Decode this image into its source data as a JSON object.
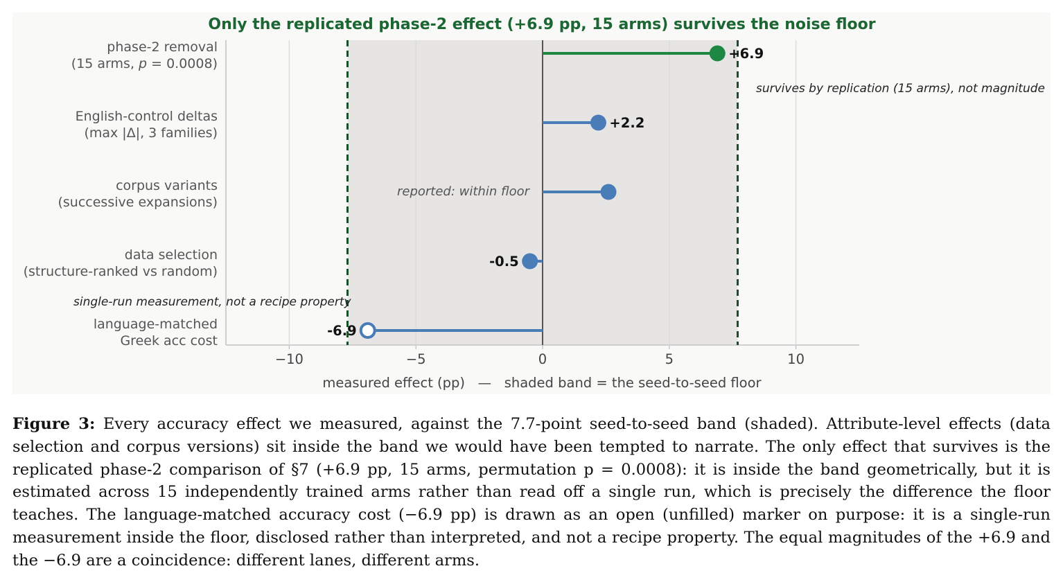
{
  "chart_data": {
    "type": "lollipop",
    "title": "Only the replicated phase-2 effect (+6.9 pp, 15 arms) survives the noise floor",
    "xlabel": "measured effect (pp)   —   shaded band = the seed-to-seed floor",
    "xlim": [
      -12.5,
      12.5
    ],
    "xticks": [
      -10,
      -5,
      0,
      5,
      10
    ],
    "xtick_labels": [
      "−10",
      "−5",
      "0",
      "5",
      "10"
    ],
    "floor_band": [
      -7.7,
      7.7
    ],
    "grid": true,
    "categories": [
      {
        "line1": "phase-2 removal",
        "line2": "(15 arms, p = 0.0008)"
      },
      {
        "line1": "English-control deltas",
        "line2": "(max |Δ|, 3 families)"
      },
      {
        "line1": "corpus variants",
        "line2": "(successive expansions)"
      },
      {
        "line1": "data selection",
        "line2": "(structure-ranked vs random)"
      },
      {
        "line1": "language-matched",
        "line2": "Greek acc cost"
      }
    ],
    "values": [
      6.9,
      2.2,
      2.6,
      -0.5,
      -6.9
    ],
    "value_labels": [
      "+6.9",
      "+2.2",
      "",
      "-0.5",
      "-6.9"
    ],
    "marker_styles": [
      "filled",
      "filled",
      "filled",
      "filled",
      "open"
    ],
    "colors": [
      "#1e8741",
      "#4a7db8",
      "#4a7db8",
      "#4a7db8",
      "#4a7db8"
    ],
    "annotations": [
      "survives by replication (15 arms), not magnitude",
      "reported: within floor",
      "single-run measurement, not a recipe property"
    ]
  },
  "colors": {
    "highlight": "#1e8741",
    "series": "#4a7db8",
    "title": "#1c6633",
    "band": "#e6e5e4",
    "panel": "#f9f9f8",
    "floor_line": "#1a4d2a"
  },
  "caption": {
    "label": "Figure 3:",
    "text": "Every accuracy effect we measured, against the 7.7-point seed-to-seed band (shaded). Attribute-level effects (data selection and corpus versions) sit inside the band we would have been tempted to narrate. The only effect that survives is the replicated phase-2 comparison of §7 (+6.9 pp, 15 arms, permutation p = 0.0008): it is inside the band geometrically, but it is estimated across 15 independently trained arms rather than read off a single run, which is precisely the difference the floor teaches. The language-matched accuracy cost (−6.9 pp) is drawn as an open (unfilled) marker on purpose: it is a single-run measurement inside the floor, disclosed rather than interpreted, and not a recipe property. The equal magnitudes of the +6.9 and the −6.9 are a coincidence: different lanes, different arms."
  }
}
